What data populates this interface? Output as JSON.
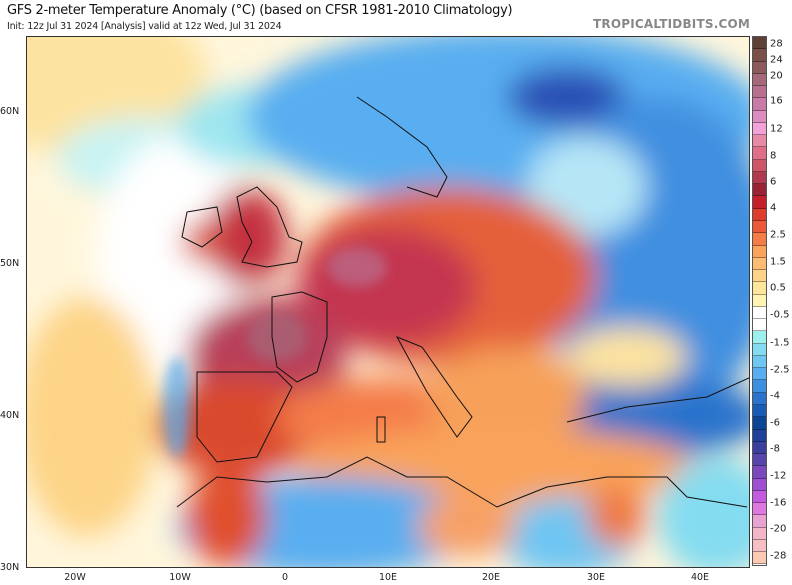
{
  "header": {
    "title": "GFS 2-meter Temperature Anomaly (°C) (based on CFSR 1981-2010 Climatology)",
    "subtitle": "Init: 12z Jul 31 2024   [Analysis]   valid at 12z Wed, Jul 31 2024",
    "watermark": "TROPICALTIDBITS.COM"
  },
  "axes": {
    "lat_labels": [
      "60N",
      "50N",
      "40N",
      "30N"
    ],
    "lon_labels": [
      "20W",
      "10W",
      "0",
      "10E",
      "20E",
      "30E",
      "40E"
    ]
  },
  "colorbar": {
    "labels": [
      "28",
      "24",
      "20",
      "16",
      "12",
      "8",
      "6",
      "4",
      "2.5",
      "1.5",
      "0.5",
      "-0.5",
      "-1.5",
      "-2.5",
      "-4",
      "-6",
      "-8",
      "-12",
      "-16",
      "-20",
      "-28"
    ],
    "colors": [
      "#5e4037",
      "#7b5048",
      "#8c5a5a",
      "#a5697a",
      "#b9708f",
      "#c97aa6",
      "#db8cc0",
      "#f3a2d9",
      "#e88aa6",
      "#df6f86",
      "#cf5568",
      "#b23a4e",
      "#9a2235",
      "#c41f2a",
      "#de3d2d",
      "#ea5a3a",
      "#f47d48",
      "#f9a35c",
      "#fcbd73",
      "#fdd487",
      "#fee59c",
      "#fff3b5",
      "#ffffff",
      "#ffffff",
      "#9ef0ee",
      "#84dcf0",
      "#6ec6f3",
      "#58aef0",
      "#3f8fe0",
      "#2b73cc",
      "#1a5cb5",
      "#0d4596",
      "#1f3f99",
      "#3a3f9e",
      "#5944ab",
      "#7c49bd",
      "#9f4fd4",
      "#c35be0",
      "#dd79de",
      "#e8a3d2"
    ],
    "bottom_colors": [
      "#f2b6c8",
      "#f6bfc4",
      "#fbcab2"
    ]
  }
}
